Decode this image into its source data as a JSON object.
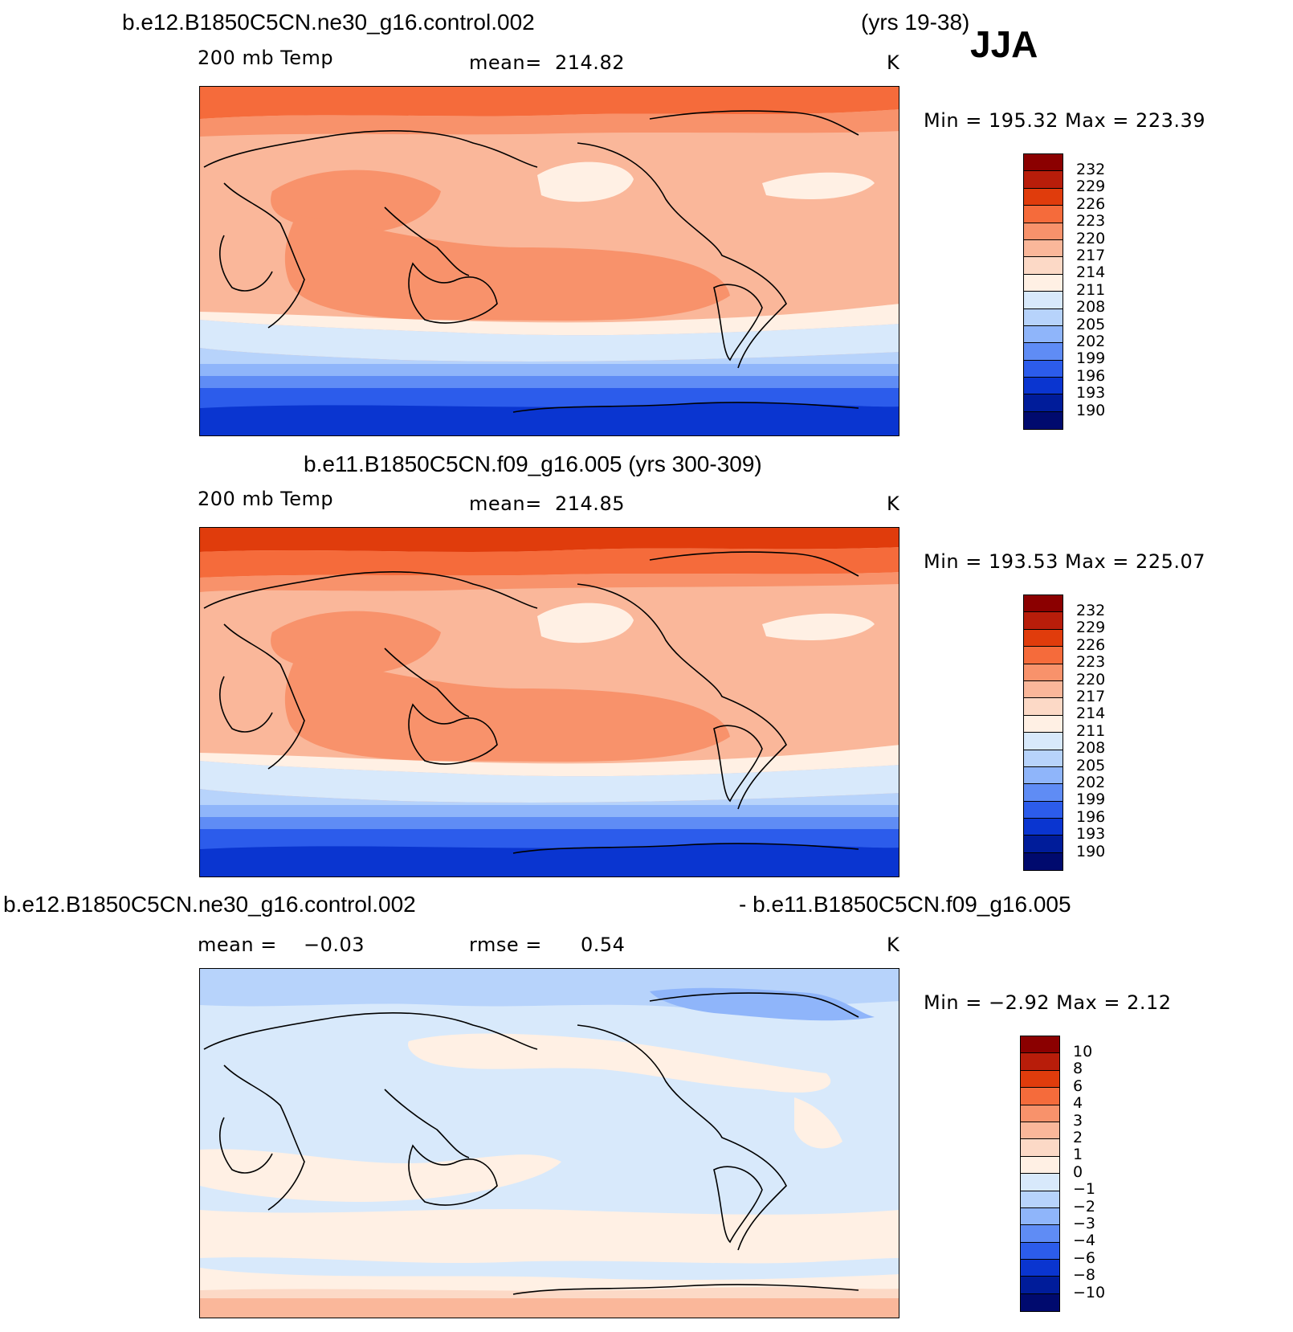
{
  "season": "JJA",
  "panels": [
    {
      "title": "b.e12.B1850C5CN.ne30_g16.control.002",
      "years": "(yrs 19-38)",
      "field": "200 mb Temp",
      "mean_label": "mean=",
      "mean_value": "214.82",
      "units": "K",
      "minmax": "Min  =  195.32  Max  =  223.39"
    },
    {
      "title": "b.e11.B1850C5CN.f09_g16.005 (yrs 300-309)",
      "field": "200 mb Temp",
      "mean_label": "mean=",
      "mean_value": "214.85",
      "units": "K",
      "minmax": "Min  =  193.53  Max  =  225.07"
    },
    {
      "title_left": "b.e12.B1850C5CN.ne30_g16.control.002",
      "title_right": "- b.e11.B1850C5CN.f09_g16.005",
      "mean_label": "mean  =",
      "mean_value": "−0.03",
      "rmse_label": "rmse  =",
      "rmse_value": "0.54",
      "units": "K",
      "minmax": "Min  =    −2.92  Max  =       2.12"
    }
  ],
  "colorbar_abs": {
    "labels": [
      "232",
      "229",
      "226",
      "223",
      "220",
      "217",
      "214",
      "211",
      "208",
      "205",
      "202",
      "199",
      "196",
      "193",
      "190"
    ],
    "colors": [
      "#8b0000",
      "#b81d0a",
      "#e03c0c",
      "#f56b3b",
      "#f8926b",
      "#fab79a",
      "#fcd9c6",
      "#fff0e4",
      "#d8e9fb",
      "#b7d3fb",
      "#8fb5fa",
      "#5f8cf5",
      "#2c5ceb",
      "#0a35d0",
      "#001c9a",
      "#000a6e"
    ]
  },
  "colorbar_diff": {
    "labels": [
      "10",
      "8",
      "6",
      "4",
      "3",
      "2",
      "1",
      "0",
      "−1",
      "−2",
      "−3",
      "−4",
      "−6",
      "−8",
      "−10"
    ],
    "colors": [
      "#8b0000",
      "#b81d0a",
      "#e03c0c",
      "#f56b3b",
      "#f8926b",
      "#fab79a",
      "#fcd9c6",
      "#fff0e4",
      "#d8e9fb",
      "#b7d3fb",
      "#8fb5fa",
      "#5f8cf5",
      "#2c5ceb",
      "#0a35d0",
      "#001c9a",
      "#000a6e"
    ]
  }
}
